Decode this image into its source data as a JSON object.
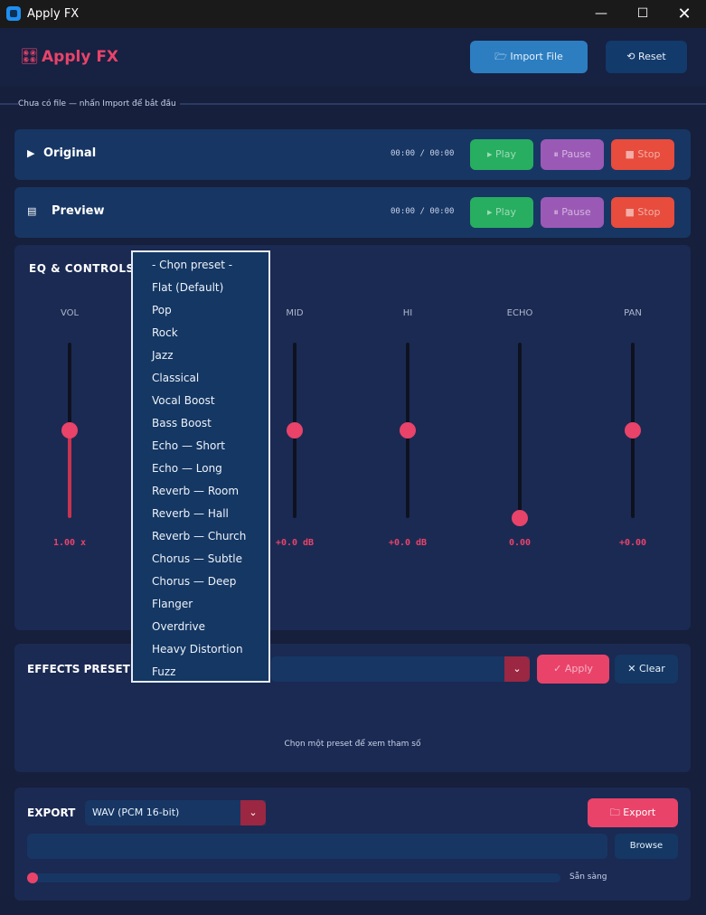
{
  "window": {
    "title": "Apply FX",
    "minimize": "—",
    "maximize": "☐",
    "close": "✕"
  },
  "header": {
    "logo_icon": "🎛",
    "title": "Apply FX",
    "import_label": "🗁 Import File",
    "reset_label": "⟲ Reset"
  },
  "status": {
    "message": "Chưa có file — nhấn Import để bắt đầu"
  },
  "players": [
    {
      "icon": "▶",
      "title": "Original",
      "time": "00:00 / 00:00",
      "play": "▸ Play",
      "pause": "⏸ Pause",
      "stop": "■ Stop"
    },
    {
      "icon": "▤",
      "title": "Preview",
      "time": "00:00 / 00:00",
      "play": "▸ Play",
      "pause": "⏸ Pause",
      "stop": "■ Stop"
    }
  ],
  "eq": {
    "title": "EQ & CONTROLS",
    "sliders": [
      {
        "label": "VOL",
        "value": "1.00 x",
        "level": 0.5,
        "fill": true
      },
      {
        "label": "MID",
        "value": "+0.0 dB",
        "level": 0.5,
        "fill": false
      },
      {
        "label": "HI",
        "value": "+0.0 dB",
        "level": 0.5,
        "fill": false
      },
      {
        "label": "ECHO",
        "value": "0.00",
        "level": 0.0,
        "fill": false
      },
      {
        "label": "PAN",
        "value": "+0.00",
        "level": 0.5,
        "fill": false
      }
    ]
  },
  "effects": {
    "title": "EFFECTS PRESET",
    "dropdown_arrow": "⌄",
    "apply_label": "✓ Apply",
    "clear_label": "✕ Clear",
    "hint": "Chọn một preset để xem tham số"
  },
  "preset_options": [
    "- Chọn preset -",
    "Flat (Default)",
    "Pop",
    "Rock",
    "Jazz",
    "Classical",
    "Vocal Boost",
    "Bass Boost",
    "Echo — Short",
    "Echo — Long",
    "Reverb — Room",
    "Reverb — Hall",
    "Reverb — Church",
    "Chorus — Subtle",
    "Chorus — Deep",
    "Flanger",
    "Overdrive",
    "Heavy Distortion",
    "Fuzz"
  ],
  "export": {
    "title": "EXPORT",
    "format": "WAV (PCM 16-bit)",
    "dropdown_arrow": "⌄",
    "export_label": "🗀 Export",
    "browse_label": "Browse",
    "status": "Sẵn sàng",
    "progress": 0.0
  },
  "colors": {
    "accent": "#e9436a",
    "play": "#27ae60",
    "pause": "#9b59b6",
    "stop": "#e74c3c",
    "bg": "#161f3b",
    "panel": "#1b2a53"
  }
}
